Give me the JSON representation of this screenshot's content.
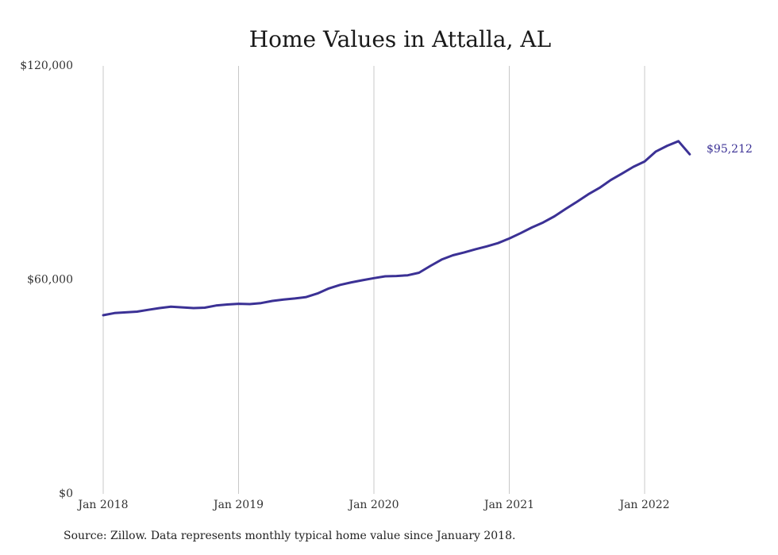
{
  "chart_data": {
    "type": "line",
    "title": "Home Values in Attalla, AL",
    "xlabel": "",
    "ylabel": "",
    "ylim": [
      0,
      120000
    ],
    "y_ticks": [
      "$0",
      "$60,000",
      "$120,000"
    ],
    "y_tick_values": [
      0,
      60000,
      120000
    ],
    "x_ticks": [
      "Jan 2018",
      "Jan 2019",
      "Jan 2020",
      "Jan 2021",
      "Jan 2022"
    ],
    "x_tick_values": [
      "2018-01",
      "2019-01",
      "2020-01",
      "2021-01",
      "2022-01"
    ],
    "grid": "vertical",
    "line_color": "#3b3195",
    "series": [
      {
        "x": [
          "2018-01",
          "2018-02",
          "2018-03",
          "2018-04",
          "2018-05",
          "2018-06",
          "2018-07",
          "2018-08",
          "2018-09",
          "2018-10",
          "2018-11",
          "2018-12",
          "2019-01",
          "2019-02",
          "2019-03",
          "2019-04",
          "2019-05",
          "2019-06",
          "2019-07",
          "2019-08",
          "2019-09",
          "2019-10",
          "2019-11",
          "2019-12",
          "2020-01",
          "2020-02",
          "2020-03",
          "2020-04",
          "2020-05",
          "2020-06",
          "2020-07",
          "2020-08",
          "2020-09",
          "2020-10",
          "2020-11",
          "2020-12",
          "2021-01",
          "2021-02",
          "2021-03",
          "2021-04",
          "2021-05",
          "2021-06",
          "2021-07",
          "2021-08",
          "2021-09",
          "2021-10",
          "2021-11",
          "2021-12",
          "2022-01",
          "2022-02",
          "2022-03",
          "2022-04",
          "2022-05"
        ],
        "values": [
          50100,
          50700,
          50900,
          51100,
          51600,
          52100,
          52500,
          52300,
          52100,
          52200,
          52800,
          53100,
          53300,
          53200,
          53500,
          54100,
          54500,
          54800,
          55200,
          56200,
          57600,
          58600,
          59300,
          59900,
          60500,
          61000,
          61100,
          61300,
          62000,
          63900,
          65700,
          66900,
          67700,
          68600,
          69400,
          70300,
          71600,
          73100,
          74700,
          76100,
          77800,
          79900,
          81900,
          84000,
          85800,
          88000,
          89800,
          91700,
          93200,
          96000,
          97600,
          98900,
          95212
        ]
      }
    ],
    "end_label": "$95,212"
  },
  "source_text": "Source: Zillow. Data represents monthly typical home value since January 2018."
}
